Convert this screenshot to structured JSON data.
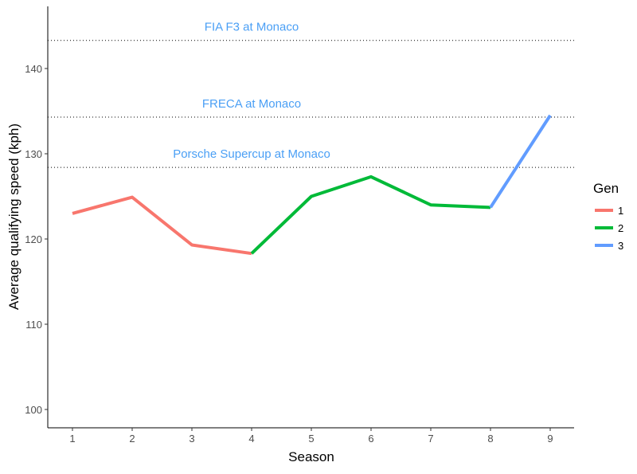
{
  "chart_data": {
    "type": "line",
    "xlabel": "Season",
    "ylabel": "Average qualifying speed (kph)",
    "xlim": [
      0.6,
      9.4
    ],
    "ylim": [
      98,
      147.5
    ],
    "x_ticks": [
      1,
      2,
      3,
      4,
      5,
      6,
      7,
      8,
      9
    ],
    "y_ticks": [
      100,
      110,
      120,
      130,
      140
    ],
    "grid": false,
    "legend": {
      "title": "Gen",
      "position": "right"
    },
    "series": [
      {
        "name": "1",
        "color": "#F8766D",
        "x": [
          1,
          2,
          3,
          4
        ],
        "y": [
          123.0,
          124.9,
          119.3,
          118.3
        ]
      },
      {
        "name": "2",
        "color": "#00BA38",
        "x": [
          4,
          5,
          6,
          7,
          8
        ],
        "y": [
          118.3,
          125.0,
          127.3,
          124.0,
          123.7
        ]
      },
      {
        "name": "3",
        "color": "#619CFF",
        "x": [
          8,
          9
        ],
        "y": [
          123.7,
          134.5
        ]
      }
    ],
    "reference_lines": [
      {
        "label": "FIA F3 at Monaco",
        "y": 143.3
      },
      {
        "label": "FRECA at Monaco",
        "y": 134.3
      },
      {
        "label": "Porsche Supercup at Monaco",
        "y": 128.4
      }
    ],
    "annotation_color": "#4A9FF5"
  }
}
